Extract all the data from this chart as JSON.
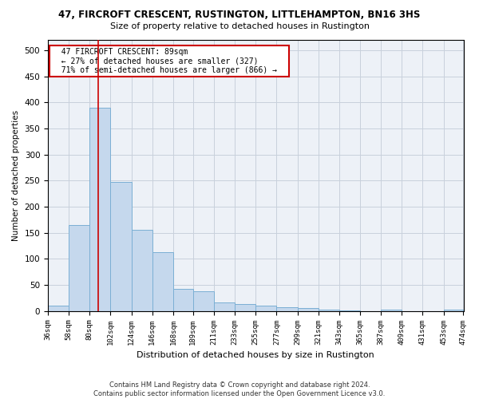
{
  "title": "47, FIRCROFT CRESCENT, RUSTINGTON, LITTLEHAMPTON, BN16 3HS",
  "subtitle": "Size of property relative to detached houses in Rustington",
  "xlabel": "Distribution of detached houses by size in Rustington",
  "ylabel": "Number of detached properties",
  "footer_line1": "Contains HM Land Registry data © Crown copyright and database right 2024.",
  "footer_line2": "Contains public sector information licensed under the Open Government Licence v3.0.",
  "annotation_line1": "  47 FIRCROFT CRESCENT: 89sqm  ",
  "annotation_line2": "  ← 27% of detached houses are smaller (327)  ",
  "annotation_line3": "  71% of semi-detached houses are larger (866) →  ",
  "property_size": 89,
  "bin_edges": [
    36,
    58,
    80,
    102,
    124,
    146,
    168,
    189,
    211,
    233,
    255,
    277,
    299,
    321,
    343,
    365,
    387,
    409,
    431,
    453,
    474
  ],
  "bar_values": [
    10,
    165,
    390,
    248,
    155,
    113,
    42,
    38,
    17,
    14,
    10,
    7,
    5,
    3,
    1,
    0,
    3,
    0,
    0,
    2
  ],
  "bar_color": "#c5d8ed",
  "bar_edge_color": "#7bafd4",
  "grid_color": "#c8d0dc",
  "background_color": "#edf1f7",
  "vline_color": "#cc0000",
  "ylim": [
    0,
    520
  ],
  "yticks": [
    0,
    50,
    100,
    150,
    200,
    250,
    300,
    350,
    400,
    450,
    500
  ]
}
